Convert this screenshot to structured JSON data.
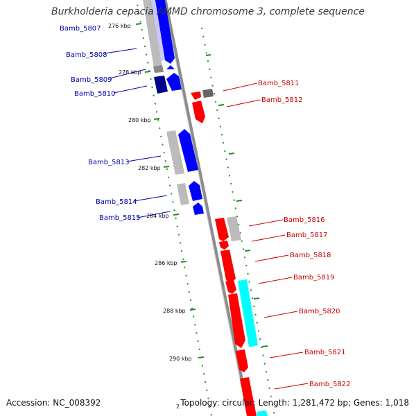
{
  "header": {
    "title": "Burkholderia cepacia AMMD chromosome 3, complete sequence"
  },
  "footer": {
    "accession": "Accession: NC_008392",
    "summary": "Topology: circular; Length: 1,281,472 bp; Genes: 1,018"
  },
  "colors": {
    "left_label": "#0000aa",
    "right_label": "#cc0000",
    "blue_gene": "#0000ff",
    "navy_gene": "#00008b",
    "red_gene": "#ff0000",
    "cyan_gene": "#00ffff",
    "gray_gene": "#bbbbbb",
    "darkgray_gene": "#666666",
    "backbone": "#8c8c8c",
    "tick": "#228b22"
  },
  "ticks": [
    "276 kbp",
    "278 kbp",
    "280 kbp",
    "282 kbp",
    "284 kbp",
    "286 kbp",
    "288 kbp",
    "290 kbp",
    "2"
  ],
  "left_labels": [
    "Bamb_5807",
    "Bamb_5808",
    "Bamb_5809",
    "Bamb_5810",
    "Bamb_5813",
    "Bamb_5814",
    "Bamb_5815"
  ],
  "right_labels": [
    "Bamb_5811",
    "Bamb_5812",
    "Bamb_5816",
    "Bamb_5817",
    "Bamb_5818",
    "Bamb_5819",
    "Bamb_5820",
    "Bamb_5821",
    "Bamb_5822"
  ]
}
